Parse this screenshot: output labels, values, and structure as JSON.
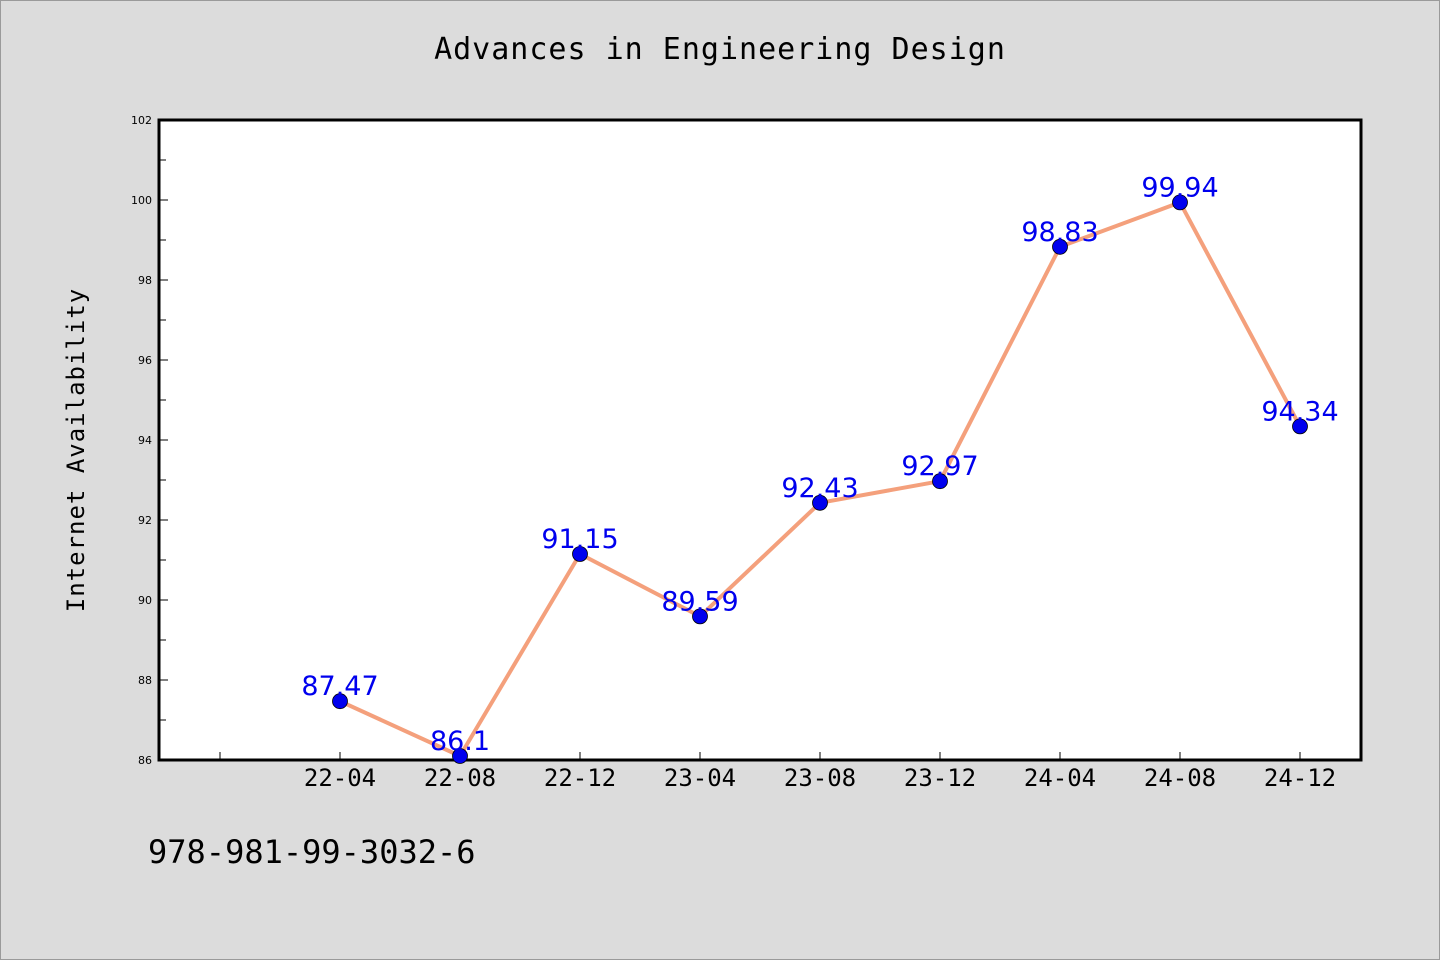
{
  "footer": {
    "code": "978-981-99-3032-6"
  },
  "colors": {
    "background": "#dcdcdc",
    "line": "#f4a07c",
    "marker": "#0000ee",
    "label": "#0000ee"
  },
  "chart_data": {
    "type": "line",
    "title": "Advances in Engineering Design",
    "xlabel": "",
    "ylabel": "Internet Availability",
    "categories": [
      "22-04",
      "22-08",
      "22-12",
      "23-04",
      "23-08",
      "23-12",
      "24-04",
      "24-08",
      "24-12"
    ],
    "values": [
      87.47,
      86.1,
      91.15,
      89.59,
      92.43,
      92.97,
      98.83,
      99.94,
      94.34
    ],
    "data_labels": [
      "87.47",
      "86.1",
      "91.15",
      "89.59",
      "92.43",
      "92.97",
      "98.83",
      "99.94",
      "94.34"
    ],
    "ylim": [
      86,
      102
    ],
    "yticks": [
      86,
      88,
      90,
      92,
      94,
      96,
      98,
      100,
      102
    ],
    "grid": false,
    "legend": "none"
  }
}
